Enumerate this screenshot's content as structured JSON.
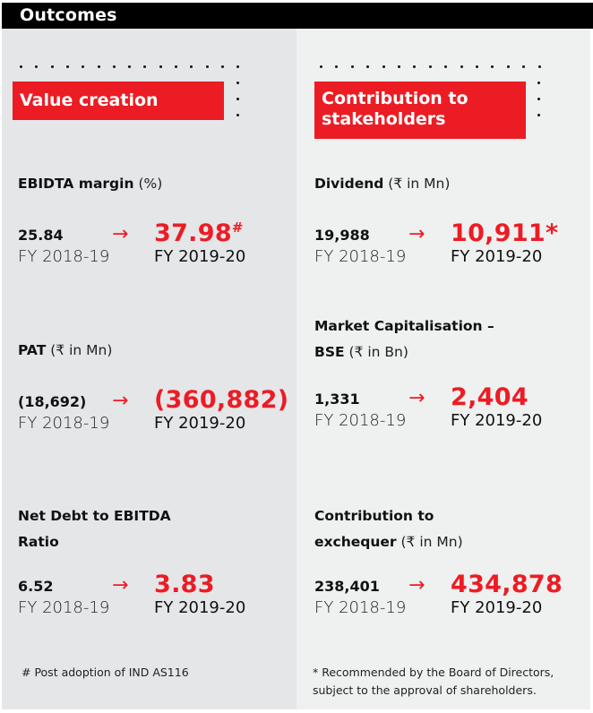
{
  "header": {
    "title": "Outcomes"
  },
  "colors": {
    "accent": "#ec1c24",
    "header_bg": "#000000",
    "left_bg": "#e5e6e8",
    "right_bg": "#eff0f0"
  },
  "icons": {
    "arrow": "→",
    "arrow_name": "arrow-right-icon"
  },
  "left": {
    "tag": "Value creation",
    "metrics": [
      {
        "title": "EBIDTA margin",
        "unit": "(%)",
        "prev": "25.84",
        "curr": "37.98",
        "curr_mark": "#",
        "prev_year": "FY 2018-19",
        "curr_year": "FY 2019-20"
      },
      {
        "title": "PAT",
        "unit": "(₹ in Mn)",
        "prev": "(18,692)",
        "curr": "(360,882)",
        "curr_mark": "",
        "prev_year": "FY 2018-19",
        "curr_year": "FY 2019-20"
      },
      {
        "title_line1": "Net Debt to EBITDA",
        "title_line2": "Ratio",
        "unit": "",
        "prev": "6.52",
        "curr": "3.83",
        "curr_mark": "",
        "prev_year": "FY 2018-19",
        "curr_year": "FY 2019-20"
      }
    ],
    "footnote": "# Post adoption of IND AS116"
  },
  "right": {
    "tag_line1": "Contribution to",
    "tag_line2": "stakeholders",
    "metrics": [
      {
        "title": "Dividend",
        "unit": "(₹ in Mn)",
        "prev": "19,988",
        "curr": "10,911",
        "curr_mark": "*",
        "prev_year": "FY 2018-19",
        "curr_year": "FY 2019-20"
      },
      {
        "title_line1": "Market Capitalisation –",
        "title_line2": "BSE",
        "unit": "(₹ in Bn)",
        "prev": "1,331",
        "curr": "2,404",
        "curr_mark": "",
        "prev_year": "FY 2018-19",
        "curr_year": "FY 2019-20"
      },
      {
        "title_line1": "Contribution to",
        "title_line2": "exchequer",
        "unit": "(₹ in Mn)",
        "prev": "238,401",
        "curr": "434,878",
        "curr_mark": "",
        "prev_year": "FY 2018-19",
        "curr_year": "FY 2019-20"
      }
    ],
    "footnote_line1": "* Recommended by the Board of Directors,",
    "footnote_line2": "subject to the approval of shareholders."
  }
}
